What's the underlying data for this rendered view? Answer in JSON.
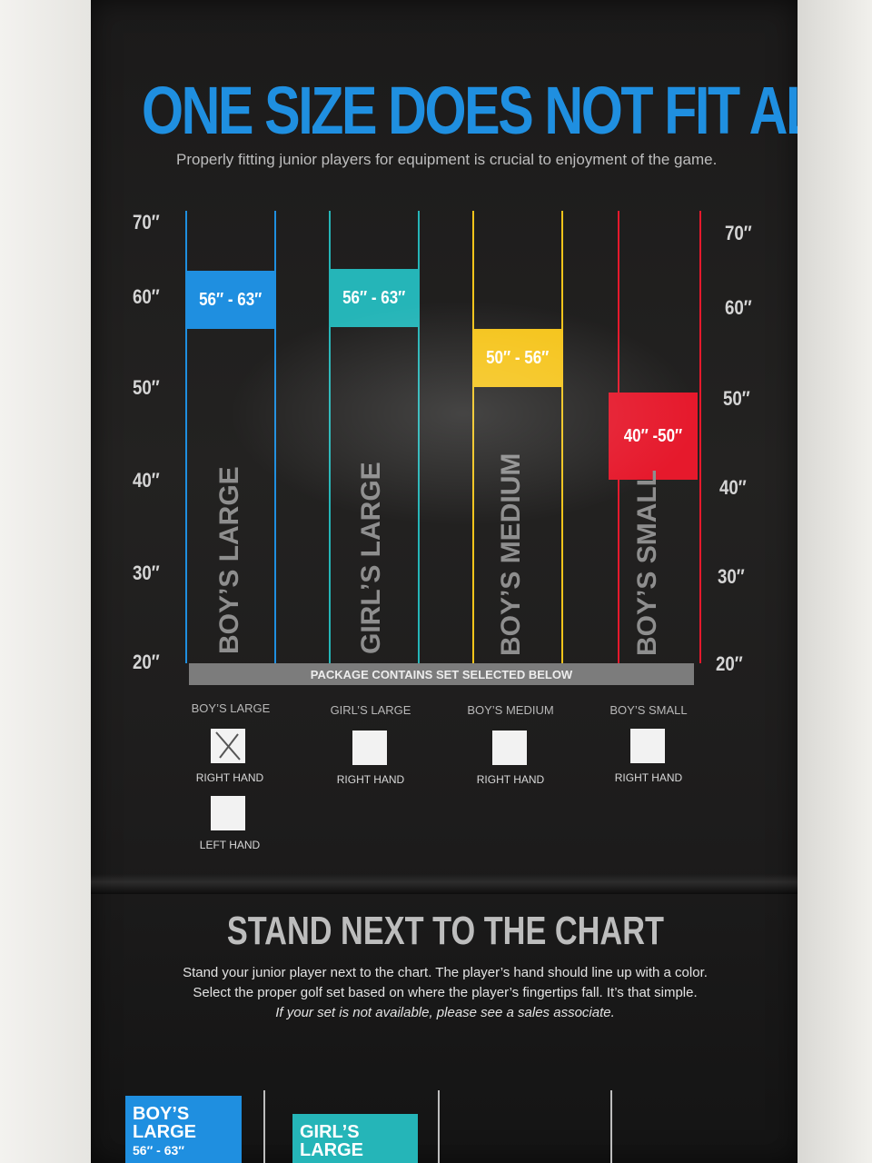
{
  "headline": "ONE SIZE DOES NOT FIT ALL",
  "subline": "Properly fitting junior players for equipment is crucial to enjoyment of the game.",
  "colors": {
    "blue": "#1f8fe0",
    "teal": "#25b5b8",
    "yellow": "#f5c41a",
    "red": "#e6192c"
  },
  "left_ticks": [
    "70″",
    "60″",
    "50″",
    "40″",
    "30″",
    "20″"
  ],
  "right_ticks": [
    "70″",
    "60″",
    "50″",
    "40″",
    "30″",
    "20″"
  ],
  "columns": [
    {
      "name": "BOY’S LARGE",
      "range": "56″ - 63″"
    },
    {
      "name": "GIRL’S LARGE",
      "range": "56″ - 63″"
    },
    {
      "name": "BOY’S MEDIUM",
      "range": "50″ - 56″"
    },
    {
      "name": "BOY’S SMALL",
      "range": "40″ -50″"
    }
  ],
  "package_bar": "PACKAGE CONTAINS SET SELECTED BELOW",
  "options": [
    {
      "label": "BOY’S LARGE",
      "right": "RIGHT HAND",
      "left": "LEFT HAND",
      "right_checked": true
    },
    {
      "label": "GIRL’S LARGE",
      "right": "RIGHT HAND"
    },
    {
      "label": "BOY’S MEDIUM",
      "right": "RIGHT HAND"
    },
    {
      "label": "BOY’S SMALL",
      "right": "RIGHT HAND"
    }
  ],
  "stand": {
    "title": "STAND NEXT TO THE CHART",
    "line1": "Stand your junior player next to the chart. The player’s hand should line up with a color.",
    "line2": "Select the proper golf set based on where the player’s fingertips fall. It’s that simple.",
    "line3": "If your set is not available, please see a sales associate."
  },
  "bottom_tabs": [
    {
      "line1": "BOY’S",
      "line2": "LARGE",
      "line3": "56″ - 63″"
    },
    {
      "line1": "GIRL’S",
      "line2": "LARGE"
    }
  ]
}
